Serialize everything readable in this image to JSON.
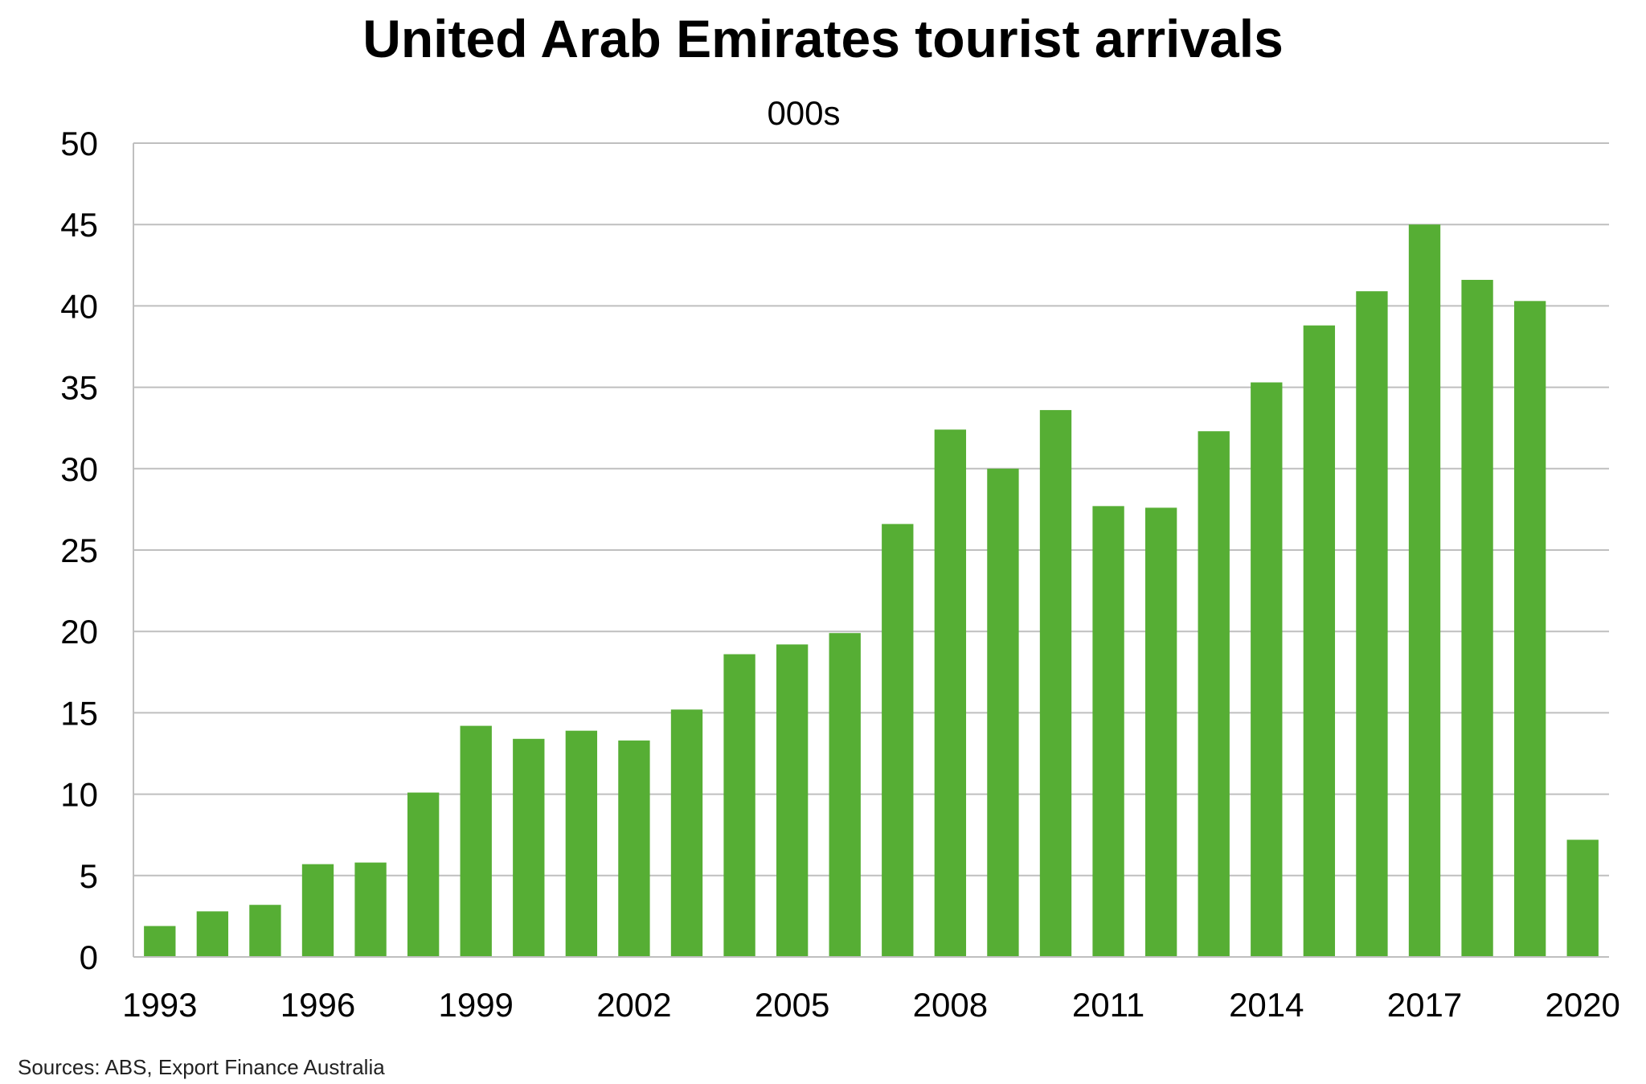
{
  "chart_data": {
    "type": "bar",
    "title": "United Arab Emirates tourist arrivals",
    "subtitle": "000s",
    "xlabel": "",
    "ylabel": "",
    "categories": [
      "1993",
      "1994",
      "1995",
      "1996",
      "1997",
      "1998",
      "1999",
      "2000",
      "2001",
      "2002",
      "2003",
      "2004",
      "2005",
      "2006",
      "2007",
      "2008",
      "2009",
      "2010",
      "2011",
      "2012",
      "2013",
      "2014",
      "2015",
      "2016",
      "2017",
      "2018",
      "2019",
      "2020"
    ],
    "x_tick_labels": [
      "1993",
      "1996",
      "1999",
      "2002",
      "2005",
      "2008",
      "2011",
      "2014",
      "2017",
      "2020"
    ],
    "series": [
      {
        "values": [
          1.9,
          2.8,
          3.2,
          5.7,
          5.8,
          10.1,
          14.2,
          13.4,
          13.9,
          13.3,
          15.2,
          18.6,
          19.2,
          19.9,
          26.6,
          32.4,
          30.0,
          33.6,
          27.7,
          27.6,
          32.3,
          35.3,
          38.8,
          40.9,
          45.0,
          41.6,
          40.3,
          7.2
        ]
      }
    ],
    "ylim": [
      0,
      50
    ],
    "y_ticks": [
      "0",
      "5",
      "10",
      "15",
      "20",
      "25",
      "30",
      "35",
      "40",
      "45",
      "50"
    ],
    "grid": true,
    "legend": "none",
    "bar_color": "#56ae34",
    "grid_color": "#bfbfbf",
    "source": "Sources: ABS, Export Finance Australia"
  }
}
